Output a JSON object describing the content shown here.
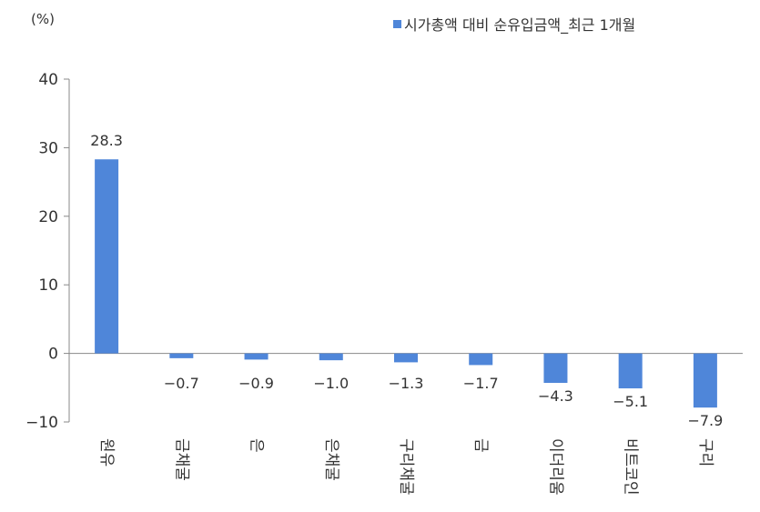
{
  "unit_label": "(%)",
  "legend": {
    "label": "시가총액 대비 순유입금액_최근 1개월",
    "color": "#4f86d9"
  },
  "chart_data": {
    "type": "bar",
    "categories": [
      "원유",
      "금채굴",
      "은",
      "은채굴",
      "구리채굴",
      "금",
      "이더리움",
      "비트코인",
      "구리"
    ],
    "series": [
      {
        "name": "시가총액 대비 순유입금액_최근 1개월",
        "values": [
          28.3,
          -0.7,
          -0.9,
          -1.0,
          -1.3,
          -1.7,
          -4.3,
          -5.1,
          -7.9
        ],
        "labels": [
          "28.3",
          "−0.7",
          "−0.9",
          "−1.0",
          "−1.3",
          "−1.7",
          "−4.3",
          "−5.1",
          "−7.9"
        ]
      }
    ],
    "ylim": [
      -10,
      40
    ],
    "yticks": [
      40,
      30,
      20,
      10,
      0,
      -10
    ],
    "ytick_labels": [
      "40",
      "30",
      "20",
      "10",
      "0",
      "−10"
    ],
    "bar_color": "#4f86d9",
    "grid": false
  }
}
